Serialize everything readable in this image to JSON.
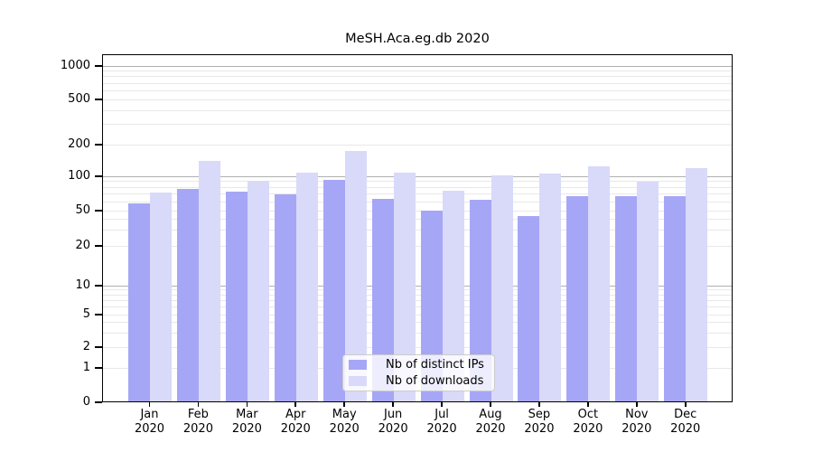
{
  "title": "MeSH.Aca.eg.db 2020",
  "chart_data": {
    "type": "bar",
    "title": "MeSH.Aca.eg.db 2020",
    "categories": [
      "Jan 2020",
      "Feb 2020",
      "Mar 2020",
      "Apr 2020",
      "May 2020",
      "Jun 2020",
      "Jul 2020",
      "Aug 2020",
      "Sep 2020",
      "Oct 2020",
      "Nov 2020",
      "Dec 2020"
    ],
    "x_tick_line1": [
      "Jan",
      "Feb",
      "Mar",
      "Apr",
      "May",
      "Jun",
      "Jul",
      "Aug",
      "Sep",
      "Oct",
      "Nov",
      "Dec"
    ],
    "x_tick_line2": [
      "2020",
      "2020",
      "2020",
      "2020",
      "2020",
      "2020",
      "2020",
      "2020",
      "2020",
      "2020",
      "2020",
      "2020"
    ],
    "series": [
      {
        "name": "Nb of distinct IPs",
        "color": "#a6a6f6",
        "values": [
          58,
          78,
          74,
          69,
          93,
          63,
          50,
          62,
          43,
          67,
          67,
          67
        ]
      },
      {
        "name": "Nb of downloads",
        "color": "#d9d9f9",
        "values": [
          72,
          139,
          91,
          109,
          173,
          109,
          75,
          103,
          107,
          124,
          89,
          120
        ]
      }
    ],
    "y_axis": {
      "scale": "log-like",
      "tick_values": [
        0,
        1,
        2,
        5,
        10,
        20,
        50,
        100,
        200,
        500,
        1000
      ],
      "major_grid_values": [
        10,
        100,
        1000
      ],
      "ylim": [
        0,
        1050
      ]
    },
    "grid": true,
    "legend": {
      "position": "bottom-center",
      "items": [
        "Nb of distinct IPs",
        "Nb of downloads"
      ]
    }
  },
  "colors": {
    "ips_bar": "#a6a6f6",
    "downloads_bar": "#d9d9f9",
    "major_grid": "#b0b0b0",
    "minor_grid": "#e8e8e8",
    "axis": "#000000",
    "background": "#ffffff",
    "legend_border": "#cccccc"
  }
}
